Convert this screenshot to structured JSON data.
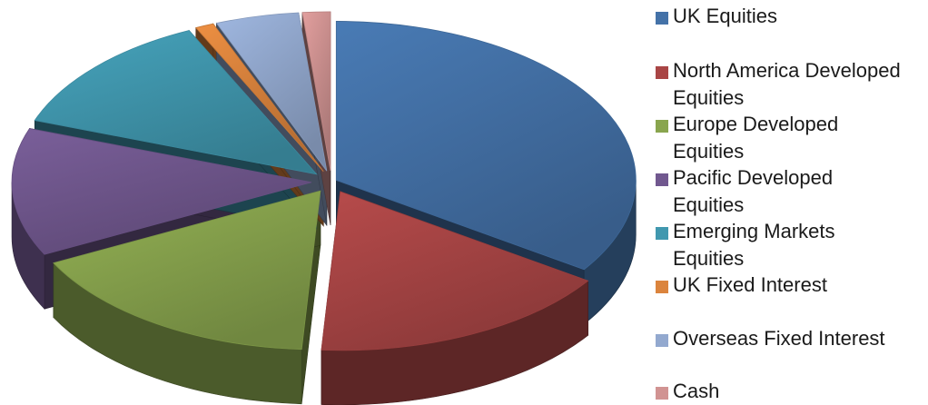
{
  "chart_data": {
    "type": "pie",
    "style": "3d-exploded",
    "title": "",
    "legend_position": "right",
    "slices": [
      {
        "label": "UK Equities",
        "value": 34.5,
        "color": "#4472a8"
      },
      {
        "label": "North America Developed Equities",
        "value": 16.5,
        "color": "#a94545"
      },
      {
        "label": "Europe Developed Equities",
        "value": 16.5,
        "color": "#89a54e"
      },
      {
        "label": "Pacific Developed Equities",
        "value": 13.0,
        "color": "#71588f"
      },
      {
        "label": "Emerging Markets Equities",
        "value": 12.5,
        "color": "#4198af"
      },
      {
        "label": "UK Fixed Interest",
        "value": 1.0,
        "color": "#db843d"
      },
      {
        "label": "Overseas Fixed Interest",
        "value": 4.5,
        "color": "#93a9cf"
      },
      {
        "label": "Cash",
        "value": 1.5,
        "color": "#d19392"
      }
    ]
  }
}
